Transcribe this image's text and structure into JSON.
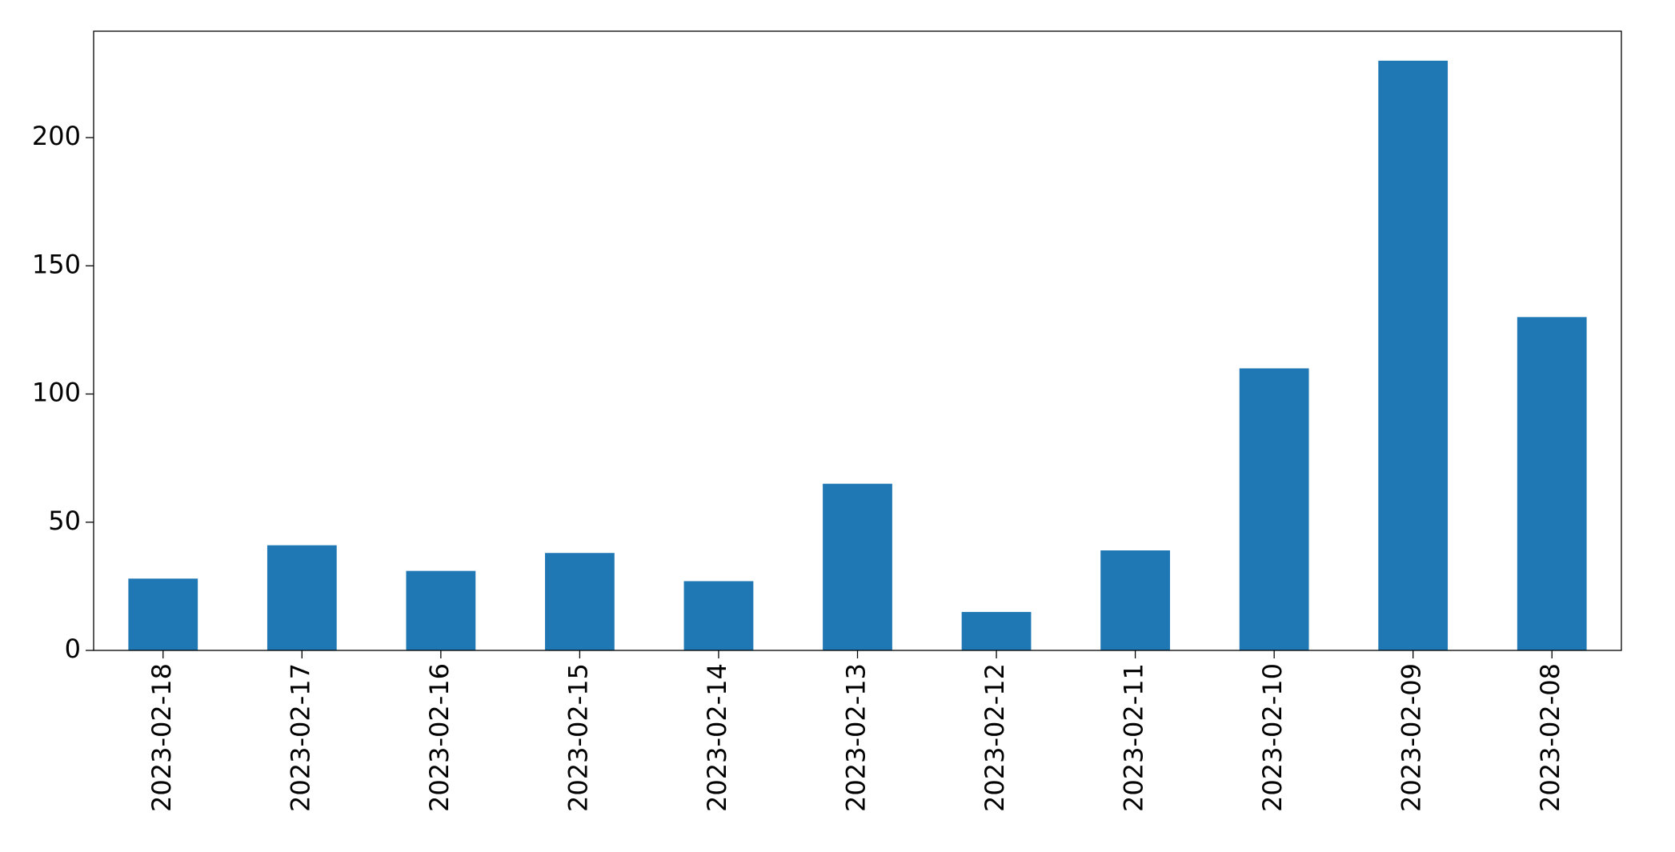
{
  "chart_data": {
    "type": "bar",
    "categories": [
      "2023-02-18",
      "2023-02-17",
      "2023-02-16",
      "2023-02-15",
      "2023-02-14",
      "2023-02-13",
      "2023-02-12",
      "2023-02-11",
      "2023-02-10",
      "2023-02-09",
      "2023-02-08"
    ],
    "values": [
      28,
      41,
      31,
      38,
      27,
      65,
      15,
      39,
      110,
      230,
      130
    ],
    "color": "#1f77b4",
    "ylim": [
      0,
      241.5
    ],
    "yticks": [
      0,
      50,
      100,
      150,
      200
    ],
    "grid": false
  }
}
